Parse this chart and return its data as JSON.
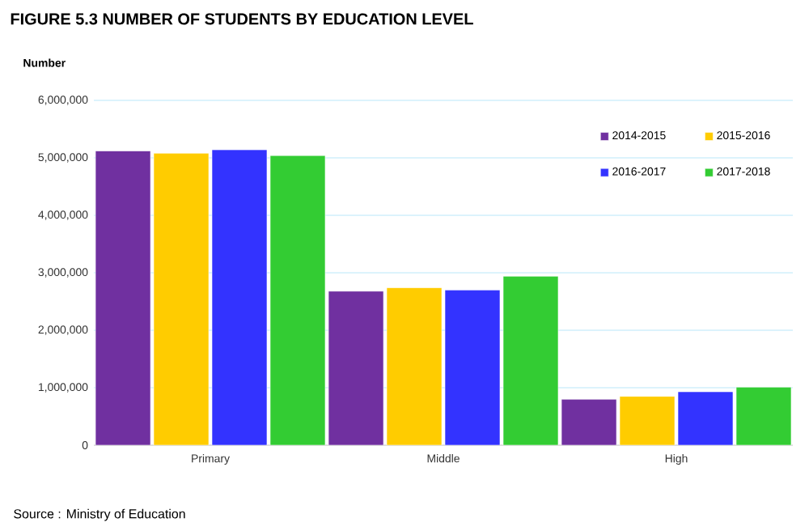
{
  "chart_data": {
    "type": "bar",
    "title": "FIGURE 5.3 NUMBER OF STUDENTS BY EDUCATION LEVEL",
    "ylabel": "Number",
    "categories": [
      "Primary",
      "Middle",
      "High"
    ],
    "series": [
      {
        "name": "2014-2015",
        "color": "#7030a0",
        "values": [
          5120000,
          2680000,
          800000
        ]
      },
      {
        "name": "2015-2016",
        "color": "#ffcc00",
        "values": [
          5080000,
          2740000,
          850000
        ]
      },
      {
        "name": "2016-2017",
        "color": "#3333ff",
        "values": [
          5140000,
          2700000,
          930000
        ]
      },
      {
        "name": "2017-2018",
        "color": "#33cc33",
        "values": [
          5040000,
          2940000,
          1010000
        ]
      }
    ],
    "ylim": [
      0,
      6000000
    ],
    "yticks": [
      {
        "value": 0,
        "label": "0"
      },
      {
        "value": 1000000,
        "label": "1,000,000"
      },
      {
        "value": 2000000,
        "label": "2,000,000"
      },
      {
        "value": 3000000,
        "label": "3,000,000"
      },
      {
        "value": 4000000,
        "label": "4,000,000"
      },
      {
        "value": 5000000,
        "label": "5,000,000"
      },
      {
        "value": 6000000,
        "label": "6,000,000"
      }
    ],
    "grid": "y",
    "legend": "top right",
    "annotations": [
      "Source : Ministry of Education"
    ]
  }
}
